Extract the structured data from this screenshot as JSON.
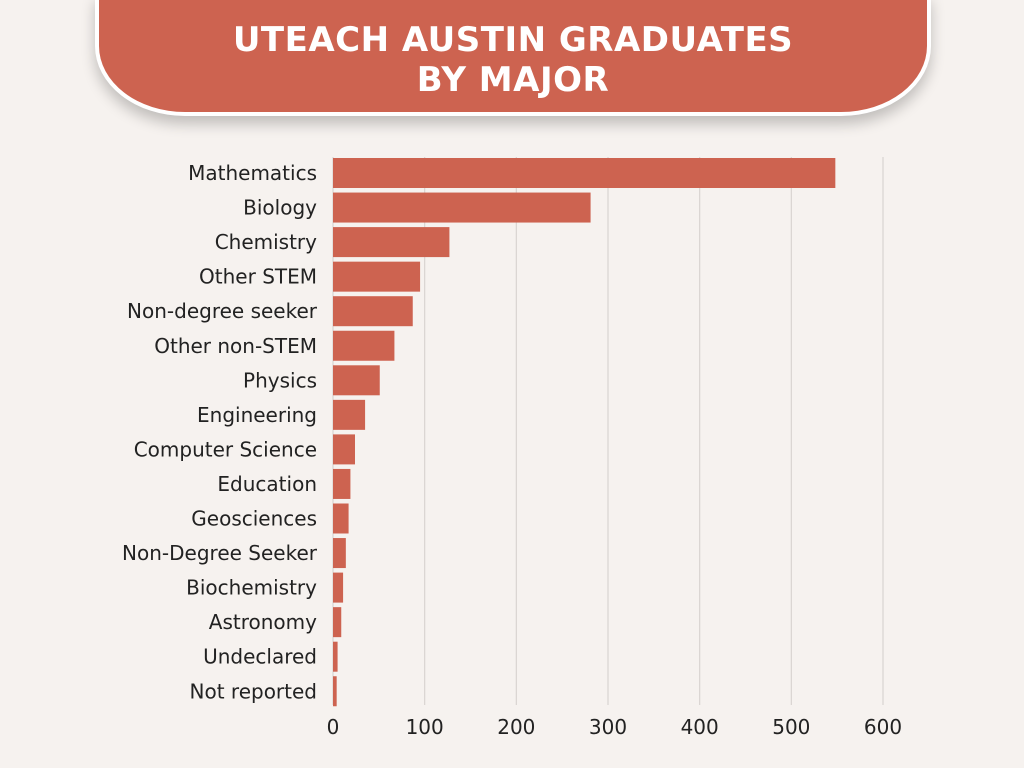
{
  "header": {
    "title_line1": "UTEACH AUSTIN GRADUATES",
    "title_line2": "BY MAJOR"
  },
  "colors": {
    "bar": "#cd6350",
    "banner": "#cd6350",
    "background": "#f6f2ef",
    "grid": "#d9d4d1"
  },
  "chart_data": {
    "type": "bar",
    "orientation": "horizontal",
    "title": "UTEACH AUSTIN GRADUATES BY MAJOR",
    "categories": [
      "Mathematics",
      "Biology",
      "Chemistry",
      "Other STEM",
      "Non-degree seeker",
      "Other non-STEM",
      "Physics",
      "Engineering",
      "Computer Science",
      "Education",
      "Geosciences",
      "Non-Degree Seeker",
      "Biochemistry",
      "Astronomy",
      "Undeclared",
      "Not reported"
    ],
    "values": [
      548,
      281,
      127,
      95,
      87,
      67,
      51,
      35,
      24,
      19,
      17,
      14,
      11,
      9,
      5,
      4
    ],
    "xlim": [
      0,
      600
    ],
    "xticks": [
      0,
      100,
      200,
      300,
      400,
      500,
      600
    ],
    "grid": true,
    "legend": "none"
  }
}
